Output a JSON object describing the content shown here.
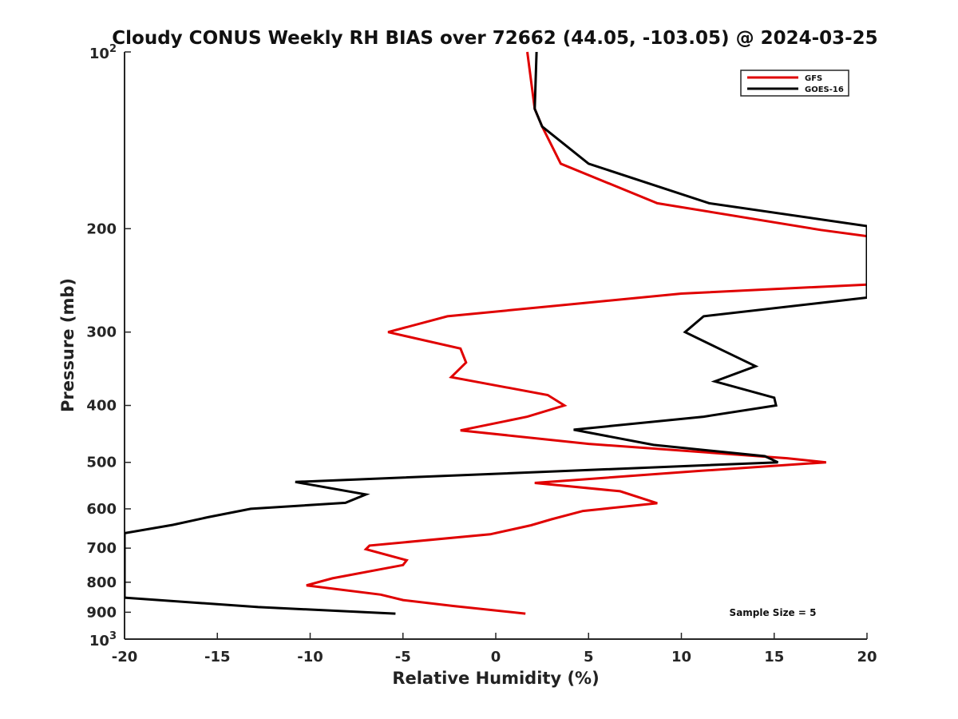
{
  "chart_data": {
    "type": "line",
    "title": "Cloudy CONUS Weekly RH BIAS over 72662 (44.05, -103.05) @ 2024-03-25",
    "xlabel": "Relative Humidity (%)",
    "ylabel": "Pressure (mb)",
    "xlim": [
      -20,
      20
    ],
    "ylim": [
      100,
      1000
    ],
    "y_scale": "log",
    "y_reversed": true,
    "x_ticks": [
      -20,
      -15,
      -10,
      -5,
      0,
      5,
      10,
      15,
      20
    ],
    "x_tick_labels": [
      "-20",
      "-15",
      "-10",
      "-5",
      "0",
      "5",
      "10",
      "15",
      "20"
    ],
    "y_ticks": [
      200,
      300,
      400,
      500,
      600,
      700,
      800,
      900
    ],
    "y_tick_labels": [
      "200",
      "300",
      "400",
      "500",
      "600",
      "700",
      "800",
      "900"
    ],
    "y_decade_ticks": [
      {
        "value": 100,
        "base": "10",
        "exp": "2"
      },
      {
        "value": 1000,
        "base": "10",
        "exp": "3"
      }
    ],
    "grid": false,
    "legend_position": "top-right",
    "annotation": "Sample Size = 5",
    "series": [
      {
        "name": "GFS",
        "color": "#e00000",
        "points": [
          [
            1.7,
            100
          ],
          [
            2.1,
            125
          ],
          [
            2.5,
            134
          ],
          [
            3.5,
            155
          ],
          [
            8.7,
            181
          ],
          [
            17.5,
            201
          ],
          [
            20.0,
            206
          ],
          [
            20.0,
            249
          ],
          [
            10.0,
            258
          ],
          [
            -2.6,
            282
          ],
          [
            -5.8,
            300
          ],
          [
            -1.9,
            320
          ],
          [
            -1.6,
            338
          ],
          [
            -2.4,
            358
          ],
          [
            2.8,
            384
          ],
          [
            3.7,
            400
          ],
          [
            1.7,
            418
          ],
          [
            -1.9,
            441
          ],
          [
            5.0,
            465
          ],
          [
            15.7,
            492
          ],
          [
            17.8,
            500
          ],
          [
            11.0,
            517
          ],
          [
            2.1,
            542
          ],
          [
            6.7,
            560
          ],
          [
            8.7,
            587
          ],
          [
            4.7,
            605
          ],
          [
            3.0,
            625
          ],
          [
            1.9,
            640
          ],
          [
            -0.3,
            663
          ],
          [
            -6.8,
            693
          ],
          [
            -7.0,
            703
          ],
          [
            -4.8,
            734
          ],
          [
            -5.0,
            748
          ],
          [
            -8.8,
            788
          ],
          [
            -10.2,
            810
          ],
          [
            -6.2,
            840
          ],
          [
            -5.0,
            858
          ],
          [
            -2.3,
            878
          ],
          [
            1.6,
            905
          ]
        ]
      },
      {
        "name": "GOES-16",
        "color": "#000000",
        "points": [
          [
            2.2,
            100
          ],
          [
            2.1,
            125
          ],
          [
            2.5,
            134
          ],
          [
            5.0,
            155
          ],
          [
            11.5,
            181
          ],
          [
            20.0,
            198
          ],
          [
            20.0,
            262
          ],
          [
            11.2,
            282
          ],
          [
            10.2,
            300
          ],
          [
            12.2,
            322
          ],
          [
            14.0,
            343
          ],
          [
            11.8,
            364
          ],
          [
            15.0,
            388
          ],
          [
            15.1,
            400
          ],
          [
            11.2,
            418
          ],
          [
            4.2,
            440
          ],
          [
            8.5,
            467
          ],
          [
            14.5,
            488
          ],
          [
            15.2,
            500
          ],
          [
            -10.8,
            540
          ],
          [
            -7.0,
            567
          ],
          [
            -8.1,
            586
          ],
          [
            -13.2,
            600
          ],
          [
            -15.5,
            620
          ],
          [
            -17.4,
            639
          ],
          [
            -20.0,
            660
          ],
          [
            -20.0,
            850
          ],
          [
            -12.8,
            882
          ],
          [
            -5.4,
            905
          ]
        ]
      }
    ]
  }
}
